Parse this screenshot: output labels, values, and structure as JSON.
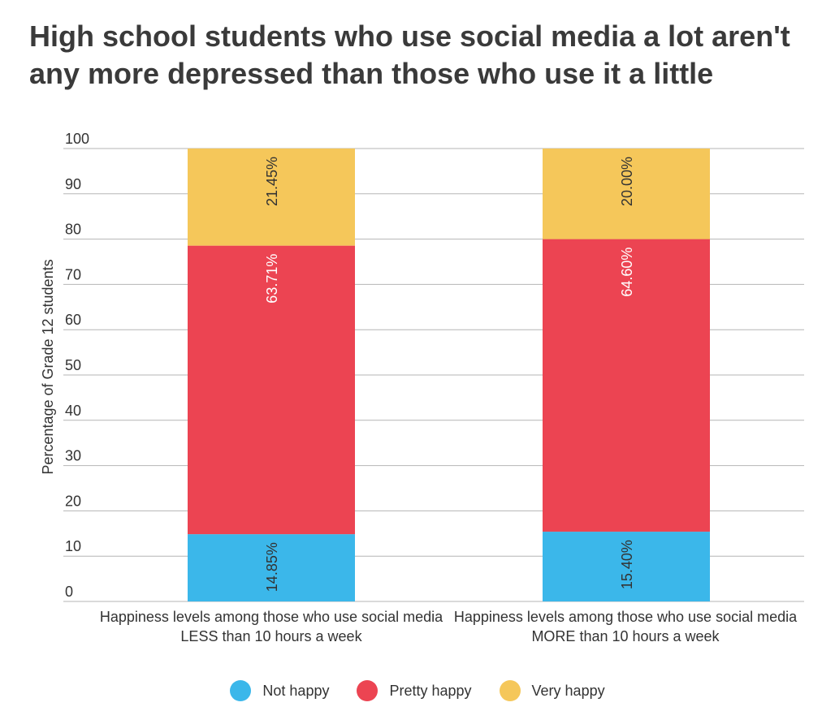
{
  "title": "High school students who use social media a lot aren't any more depressed than those who use it a little",
  "chart_data": {
    "type": "bar",
    "stacked": true,
    "categories": [
      "Happiness levels among those who use social media LESS than 10 hours a week",
      "Happiness levels among those who use social media MORE than 10 hours a week"
    ],
    "series": [
      {
        "name": "Not happy",
        "color": "#3bb7ea",
        "values": [
          14.85,
          15.4
        ],
        "labels": [
          "14.85%",
          "15.40%"
        ]
      },
      {
        "name": "Pretty happy",
        "color": "#ec4452",
        "values": [
          63.71,
          64.6
        ],
        "labels": [
          "63.71%",
          "64.60%"
        ]
      },
      {
        "name": "Very happy",
        "color": "#f5c75a",
        "values": [
          21.45,
          20.0
        ],
        "labels": [
          "21.45%",
          "20.00%"
        ]
      }
    ],
    "ylabel": "Percentage of Grade 12 students",
    "ylim": [
      0,
      100
    ],
    "yticks": [
      0,
      10,
      20,
      30,
      40,
      50,
      60,
      70,
      80,
      90,
      100
    ],
    "grid": true,
    "legend_position": "bottom"
  }
}
